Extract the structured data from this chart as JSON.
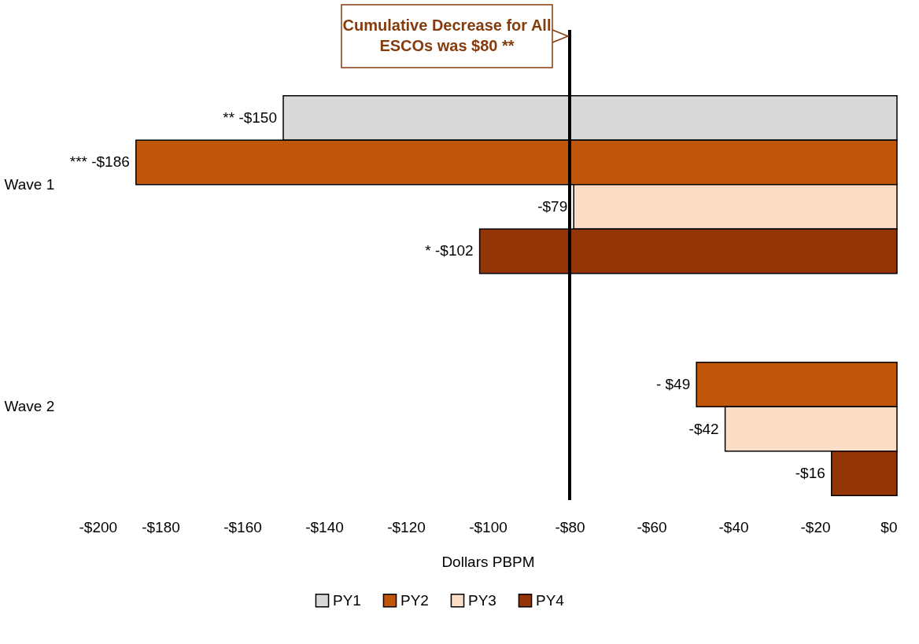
{
  "chart_data": {
    "type": "bar",
    "orientation": "horizontal",
    "categories": [
      "Wave 1",
      "Wave 2"
    ],
    "series": [
      {
        "name": "PY1",
        "color": "#d9d9d9",
        "values": [
          -150,
          null
        ],
        "value_labels": [
          "** -$150",
          null
        ]
      },
      {
        "name": "PY2",
        "color": "#c0560a",
        "values": [
          -186,
          -49
        ],
        "value_labels": [
          "*** -$186",
          "- $49"
        ]
      },
      {
        "name": "PY3",
        "color": "#fbdcc4",
        "values": [
          -79,
          -42
        ],
        "value_labels": [
          "-$79",
          "-$42"
        ]
      },
      {
        "name": "PY4",
        "color": "#933506",
        "values": [
          -102,
          -16
        ],
        "value_labels": [
          "* -$102",
          "-$16"
        ]
      }
    ],
    "xlabel": "Dollars PBPM",
    "xlim": [
      -200,
      0
    ],
    "xticks": [
      {
        "value": -200,
        "label": "-$200"
      },
      {
        "value": -180,
        "label": "-$180"
      },
      {
        "value": -160,
        "label": "-$160"
      },
      {
        "value": -140,
        "label": "-$140"
      },
      {
        "value": -120,
        "label": "-$120"
      },
      {
        "value": -100,
        "label": "-$100"
      },
      {
        "value": -80,
        "label": "-$80"
      },
      {
        "value": -60,
        "label": "-$60"
      },
      {
        "value": -40,
        "label": "-$40"
      },
      {
        "value": -20,
        "label": "-$20"
      },
      {
        "value": 0,
        "label": "$0"
      }
    ],
    "ref_lines": [
      {
        "axis": "x",
        "value": -80,
        "label": "Cumulative Decrease for All ESCOs was $80 **",
        "color": "#000000"
      }
    ],
    "grid": false,
    "legend": "bottom"
  }
}
